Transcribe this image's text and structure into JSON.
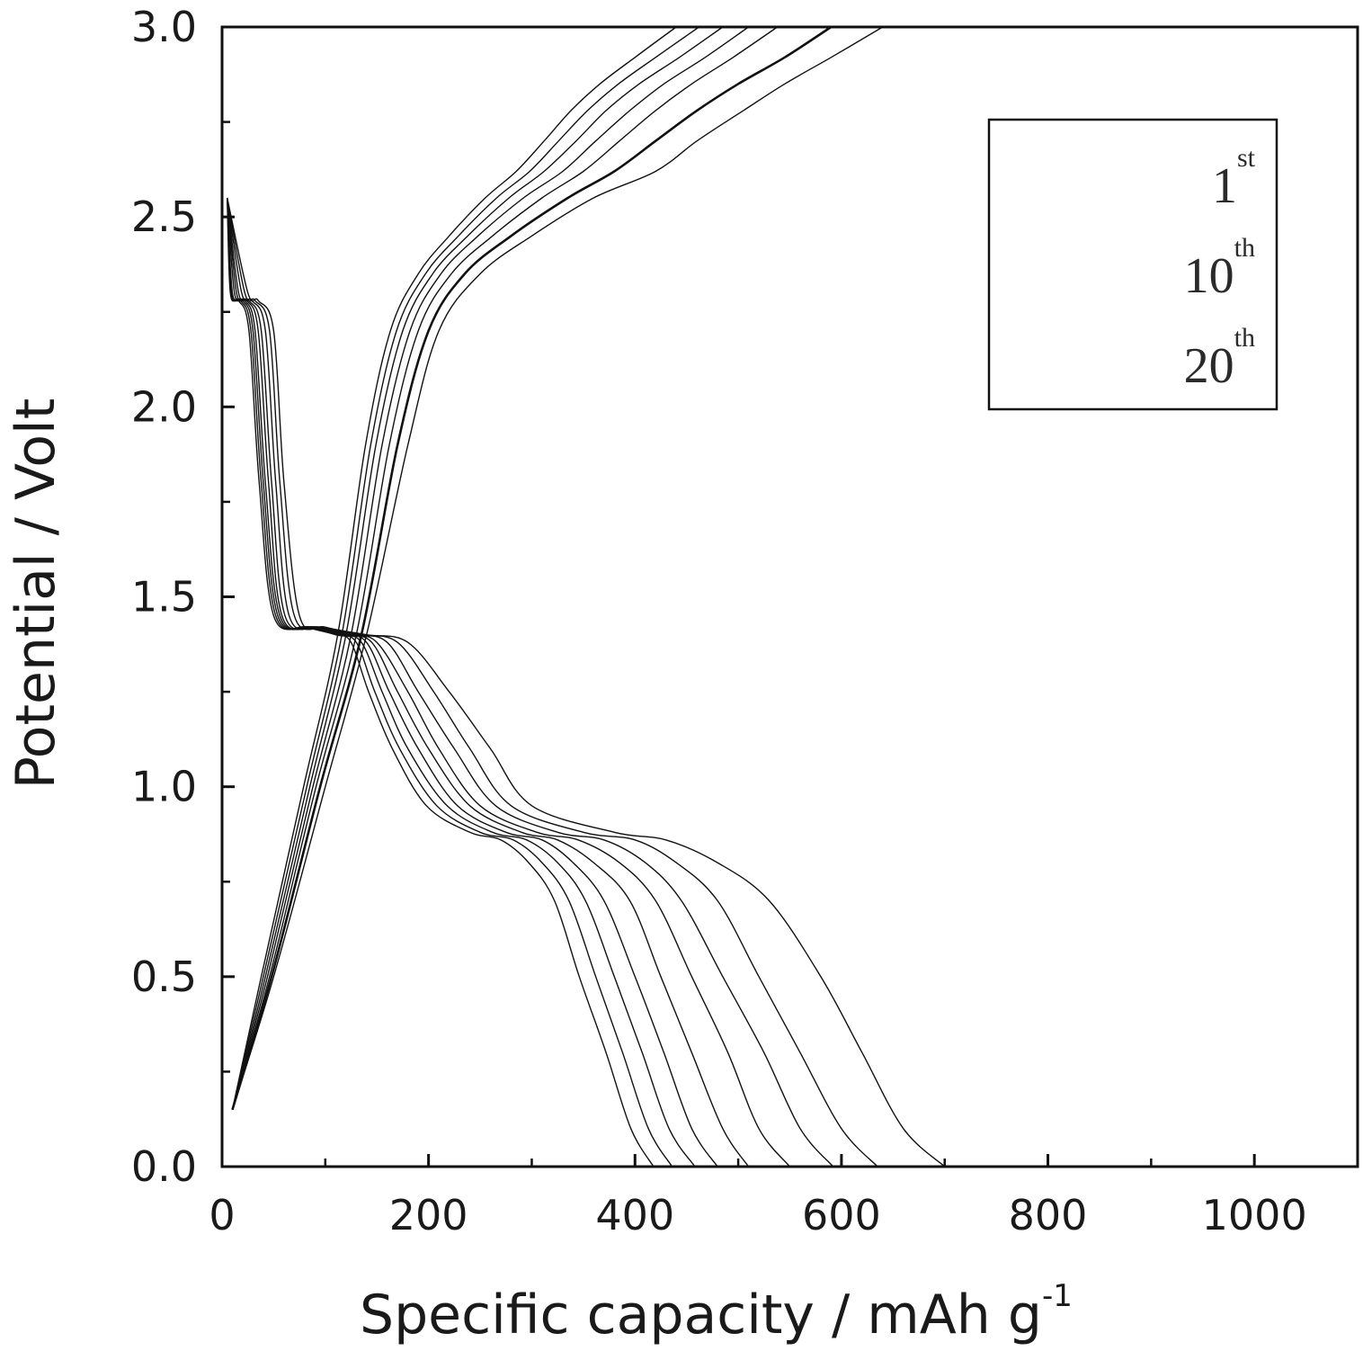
{
  "chart_data": {
    "type": "line",
    "xlabel": "Specific capacity / mAh g",
    "xlabel_sup": "-1",
    "ylabel": "Potential / Volt",
    "xlim": [
      0,
      1100
    ],
    "ylim": [
      0,
      3.0
    ],
    "xticks": [
      0,
      200,
      400,
      600,
      800,
      1000
    ],
    "yticks": [
      0.0,
      0.5,
      1.0,
      1.5,
      2.0,
      2.5,
      3.0
    ],
    "xtick_labels": [
      "0",
      "200",
      "400",
      "600",
      "800",
      "1000"
    ],
    "ytick_labels": [
      "0.0",
      "0.5",
      "1.0",
      "1.5",
      "2.0",
      "2.5",
      "3.0"
    ],
    "legend": {
      "placement": "top-right",
      "entries": [
        {
          "base": "1",
          "sup": "st"
        },
        {
          "base": "10",
          "sup": "th"
        },
        {
          "base": "20",
          "sup": "th"
        }
      ]
    },
    "series": [
      {
        "kind": "discharge",
        "x": [
          5,
          25,
          35,
          50,
          60,
          75,
          100,
          140,
          180,
          220,
          260,
          300,
          380,
          430,
          480,
          530,
          580,
          620,
          660,
          700
        ],
        "y": [
          2.55,
          2.3,
          2.28,
          2.2,
          1.8,
          1.45,
          1.42,
          1.4,
          1.38,
          1.25,
          1.1,
          0.95,
          0.88,
          0.86,
          0.8,
          0.7,
          0.5,
          0.3,
          0.1,
          0.0
        ]
      },
      {
        "kind": "discharge",
        "x": [
          5,
          22,
          32,
          46,
          56,
          70,
          100,
          135,
          170,
          205,
          240,
          280,
          350,
          400,
          440,
          480,
          520,
          560,
          600,
          635
        ],
        "y": [
          2.55,
          2.3,
          2.28,
          2.2,
          1.8,
          1.45,
          1.42,
          1.4,
          1.38,
          1.25,
          1.1,
          0.95,
          0.88,
          0.86,
          0.8,
          0.7,
          0.5,
          0.3,
          0.1,
          0.0
        ]
      },
      {
        "kind": "discharge",
        "x": [
          5,
          19,
          29,
          42,
          52,
          65,
          95,
          130,
          160,
          190,
          225,
          265,
          325,
          370,
          410,
          445,
          485,
          525,
          560,
          592
        ],
        "y": [
          2.55,
          2.3,
          2.28,
          2.2,
          1.8,
          1.45,
          1.42,
          1.4,
          1.38,
          1.25,
          1.1,
          0.95,
          0.88,
          0.86,
          0.8,
          0.7,
          0.5,
          0.3,
          0.1,
          0.0
        ]
      },
      {
        "kind": "discharge",
        "x": [
          5,
          16,
          26,
          38,
          48,
          61,
          92,
          125,
          150,
          180,
          210,
          250,
          305,
          345,
          385,
          420,
          455,
          490,
          520,
          550
        ],
        "y": [
          2.55,
          2.3,
          2.28,
          2.2,
          1.8,
          1.45,
          1.42,
          1.4,
          1.38,
          1.25,
          1.1,
          0.95,
          0.88,
          0.86,
          0.8,
          0.7,
          0.5,
          0.3,
          0.1,
          0.0
        ]
      },
      {
        "kind": "discharge",
        "x": [
          5,
          14,
          24,
          35,
          45,
          58,
          90,
          120,
          145,
          170,
          200,
          240,
          290,
          325,
          360,
          395,
          425,
          455,
          485,
          510
        ],
        "y": [
          2.55,
          2.3,
          2.28,
          2.2,
          1.8,
          1.45,
          1.42,
          1.4,
          1.38,
          1.25,
          1.1,
          0.95,
          0.88,
          0.86,
          0.8,
          0.7,
          0.5,
          0.3,
          0.1,
          0.0
        ]
      },
      {
        "kind": "discharge",
        "x": [
          5,
          12,
          22,
          32,
          42,
          56,
          88,
          118,
          140,
          162,
          190,
          228,
          275,
          310,
          340,
          370,
          400,
          428,
          455,
          480
        ],
        "y": [
          2.55,
          2.3,
          2.28,
          2.2,
          1.8,
          1.45,
          1.42,
          1.4,
          1.38,
          1.25,
          1.1,
          0.95,
          0.88,
          0.86,
          0.8,
          0.7,
          0.5,
          0.3,
          0.1,
          0.0
        ]
      },
      {
        "kind": "discharge",
        "x": [
          5,
          10,
          20,
          30,
          40,
          54,
          86,
          115,
          135,
          155,
          180,
          218,
          262,
          295,
          325,
          352,
          380,
          407,
          433,
          458
        ],
        "y": [
          2.55,
          2.3,
          2.28,
          2.2,
          1.8,
          1.45,
          1.42,
          1.4,
          1.38,
          1.25,
          1.1,
          0.95,
          0.88,
          0.86,
          0.8,
          0.7,
          0.5,
          0.3,
          0.1,
          0.0
        ]
      },
      {
        "kind": "discharge",
        "x": [
          5,
          9,
          18,
          28,
          38,
          52,
          84,
          112,
          130,
          148,
          172,
          208,
          250,
          282,
          310,
          336,
          362,
          388,
          413,
          436
        ],
        "y": [
          2.55,
          2.3,
          2.28,
          2.2,
          1.8,
          1.45,
          1.42,
          1.4,
          1.38,
          1.25,
          1.1,
          0.95,
          0.88,
          0.86,
          0.8,
          0.7,
          0.5,
          0.3,
          0.1,
          0.0
        ]
      },
      {
        "kind": "discharge",
        "x": [
          5,
          8,
          16,
          26,
          36,
          50,
          82,
          110,
          125,
          142,
          165,
          198,
          240,
          270,
          297,
          322,
          346,
          372,
          396,
          418
        ],
        "y": [
          2.55,
          2.3,
          2.28,
          2.2,
          1.8,
          1.45,
          1.42,
          1.4,
          1.38,
          1.25,
          1.1,
          0.95,
          0.88,
          0.86,
          0.8,
          0.7,
          0.5,
          0.3,
          0.1,
          0.0
        ]
      },
      {
        "kind": "charge",
        "x": [
          10,
          50,
          100,
          140,
          180,
          210,
          250,
          300,
          360,
          420,
          460,
          505,
          545,
          590,
          640
        ],
        "y": [
          0.15,
          0.5,
          1.0,
          1.4,
          1.9,
          2.2,
          2.35,
          2.45,
          2.55,
          2.62,
          2.7,
          2.78,
          2.85,
          2.92,
          3.0
        ]
      },
      {
        "kind": "charge",
        "x": [
          10,
          48,
          95,
          135,
          170,
          200,
          235,
          280,
          335,
          380,
          420,
          460,
          500,
          545,
          590
        ],
        "y": [
          0.15,
          0.5,
          1.0,
          1.4,
          1.9,
          2.2,
          2.35,
          2.45,
          2.55,
          2.62,
          2.7,
          2.78,
          2.85,
          2.92,
          3.0
        ],
        "bold": true
      },
      {
        "kind": "charge",
        "x": [
          10,
          46,
          91,
          130,
          162,
          190,
          222,
          262,
          310,
          350,
          385,
          420,
          455,
          495,
          538
        ],
        "y": [
          0.15,
          0.5,
          1.0,
          1.4,
          1.9,
          2.2,
          2.35,
          2.45,
          2.55,
          2.62,
          2.7,
          2.78,
          2.85,
          2.92,
          3.0
        ]
      },
      {
        "kind": "charge",
        "x": [
          10,
          44,
          88,
          125,
          155,
          182,
          212,
          248,
          292,
          330,
          362,
          395,
          428,
          468,
          510
        ],
        "y": [
          0.15,
          0.5,
          1.0,
          1.4,
          1.9,
          2.2,
          2.35,
          2.45,
          2.55,
          2.62,
          2.7,
          2.78,
          2.85,
          2.92,
          3.0
        ]
      },
      {
        "kind": "charge",
        "x": [
          10,
          42,
          85,
          120,
          149,
          175,
          204,
          238,
          278,
          312,
          343,
          372,
          404,
          443,
          485
        ],
        "y": [
          0.15,
          0.5,
          1.0,
          1.4,
          1.9,
          2.2,
          2.35,
          2.45,
          2.55,
          2.62,
          2.7,
          2.78,
          2.85,
          2.92,
          3.0
        ]
      },
      {
        "kind": "charge",
        "x": [
          10,
          40,
          82,
          116,
          144,
          169,
          197,
          229,
          266,
          298,
          326,
          354,
          384,
          420,
          462
        ],
        "y": [
          0.15,
          0.5,
          1.0,
          1.4,
          1.9,
          2.2,
          2.35,
          2.45,
          2.55,
          2.62,
          2.7,
          2.78,
          2.85,
          2.92,
          3.0
        ]
      },
      {
        "kind": "charge",
        "x": [
          10,
          38,
          79,
          112,
          139,
          163,
          190,
          220,
          255,
          285,
          312,
          338,
          366,
          400,
          440
        ],
        "y": [
          0.15,
          0.5,
          1.0,
          1.4,
          1.9,
          2.2,
          2.35,
          2.45,
          2.55,
          2.62,
          2.7,
          2.78,
          2.85,
          2.92,
          3.0
        ]
      }
    ]
  }
}
